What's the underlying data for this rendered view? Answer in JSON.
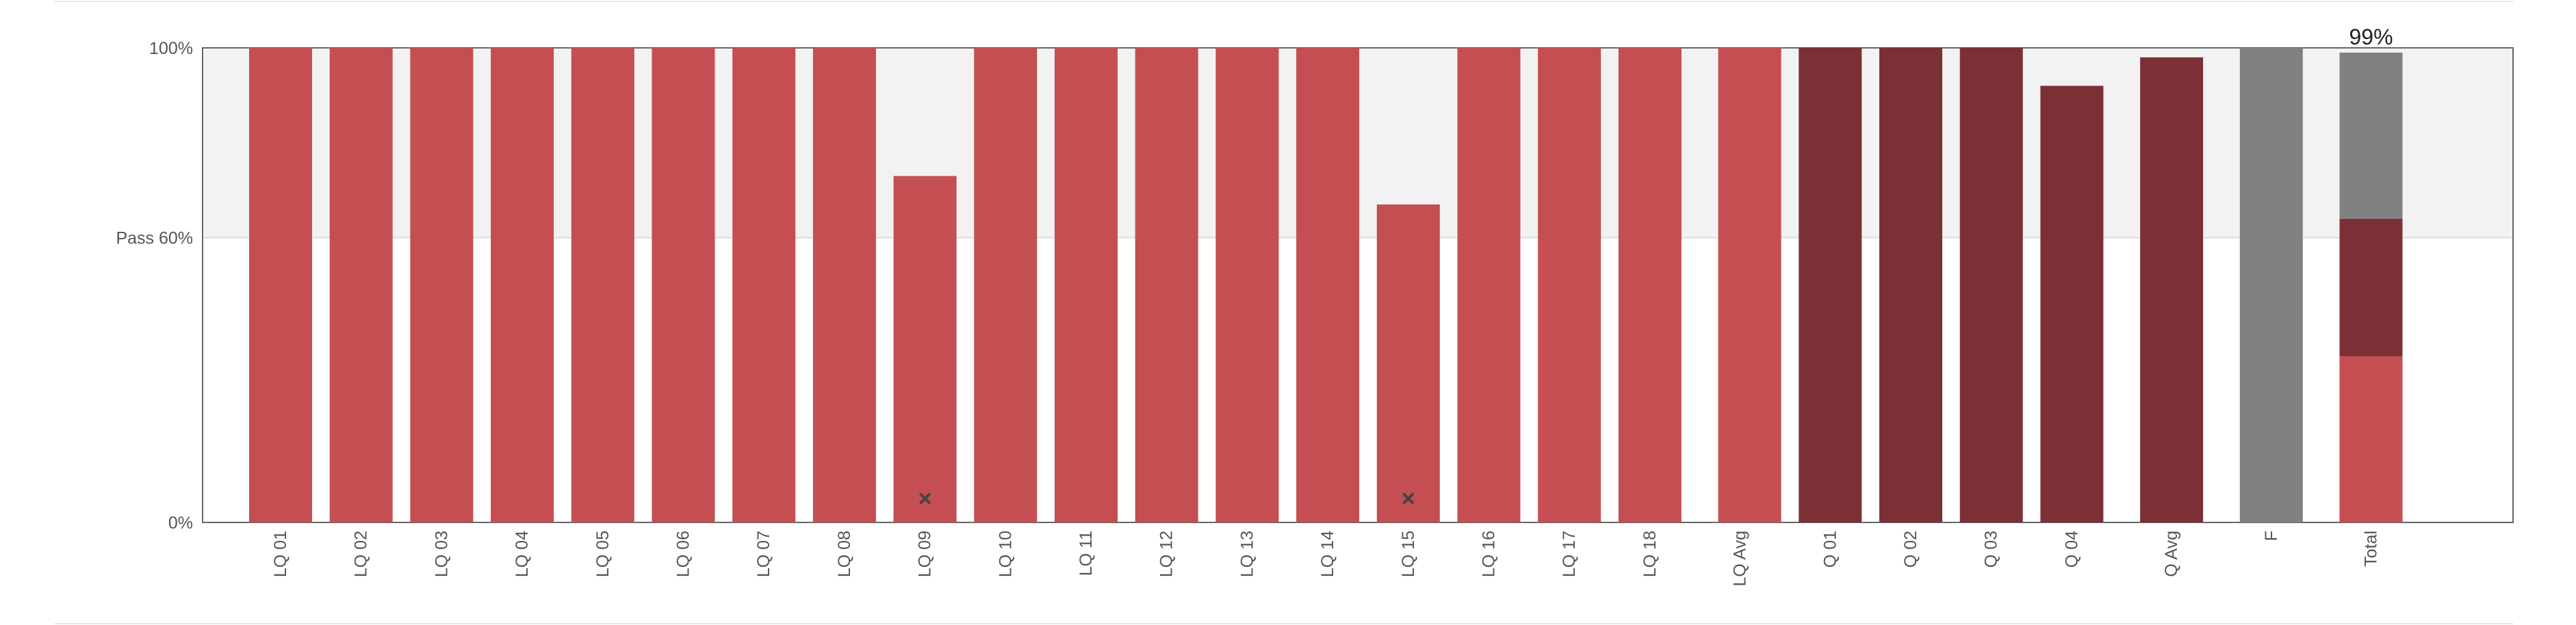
{
  "chart_data": {
    "type": "bar",
    "ylim": [
      0,
      100
    ],
    "pass_threshold": 60,
    "y_ticks": [
      {
        "value": 0,
        "label": "0%"
      },
      {
        "value": 60,
        "label": "Pass 60%"
      },
      {
        "value": 100,
        "label": "100%"
      }
    ],
    "bars": [
      {
        "label": "LQ 01",
        "value": 100,
        "kind": "lq"
      },
      {
        "label": "LQ 02",
        "value": 100,
        "kind": "lq"
      },
      {
        "label": "LQ 03",
        "value": 100,
        "kind": "lq"
      },
      {
        "label": "LQ 04",
        "value": 100,
        "kind": "lq"
      },
      {
        "label": "LQ 05",
        "value": 100,
        "kind": "lq"
      },
      {
        "label": "LQ 06",
        "value": 100,
        "kind": "lq"
      },
      {
        "label": "LQ 07",
        "value": 100,
        "kind": "lq"
      },
      {
        "label": "LQ 08",
        "value": 100,
        "kind": "lq"
      },
      {
        "label": "LQ 09",
        "value": 73,
        "kind": "lq",
        "marker": true
      },
      {
        "label": "LQ 10",
        "value": 100,
        "kind": "lq"
      },
      {
        "label": "LQ 11",
        "value": 100,
        "kind": "lq"
      },
      {
        "label": "LQ 12",
        "value": 100,
        "kind": "lq"
      },
      {
        "label": "LQ 13",
        "value": 100,
        "kind": "lq"
      },
      {
        "label": "LQ 14",
        "value": 100,
        "kind": "lq"
      },
      {
        "label": "LQ 15",
        "value": 67,
        "kind": "lq",
        "marker": true
      },
      {
        "label": "LQ 16",
        "value": 100,
        "kind": "lq"
      },
      {
        "label": "LQ 17",
        "value": 100,
        "kind": "lq"
      },
      {
        "label": "LQ 18",
        "value": 100,
        "kind": "lq"
      },
      {
        "label": "LQ Avg",
        "value": 100,
        "kind": "lq",
        "gap_before": true
      },
      {
        "label": "Q 01",
        "value": 100,
        "kind": "q"
      },
      {
        "label": "Q 02",
        "value": 100,
        "kind": "q"
      },
      {
        "label": "Q 03",
        "value": 100,
        "kind": "q"
      },
      {
        "label": "Q 04",
        "value": 92,
        "kind": "q"
      },
      {
        "label": "Q Avg",
        "value": 98,
        "kind": "q",
        "gap_before": true
      },
      {
        "label": "F",
        "value": 100,
        "kind": "f",
        "gap_before": true
      },
      {
        "label": "Total",
        "kind": "total",
        "gap_before": true,
        "segments": [
          {
            "name": "LQ",
            "value": 35,
            "kind": "lq"
          },
          {
            "name": "Q",
            "value": 29,
            "kind": "q"
          },
          {
            "name": "F",
            "value": 35,
            "kind": "f"
          }
        ],
        "annotation": "99%"
      }
    ],
    "colors": {
      "lq": "#c44e52",
      "q": "#7b3035",
      "f": "#808080",
      "pass_band": "#f2f2f2",
      "marker": "#444444",
      "axis": "#666666",
      "grid": "#dddddd"
    },
    "grid": true
  }
}
